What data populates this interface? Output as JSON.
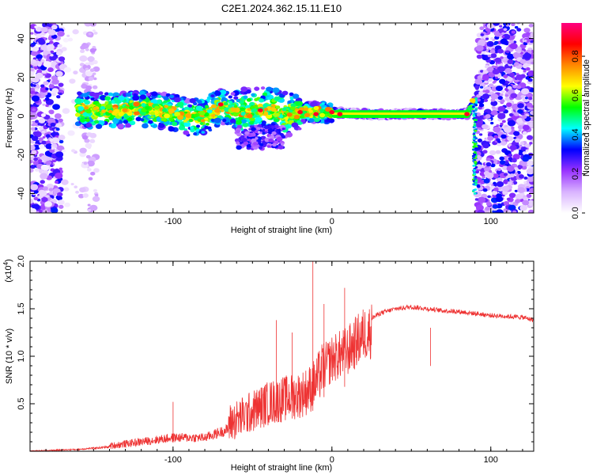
{
  "title": "C2E1.2024.362.15.11.E10",
  "chart_data": [
    {
      "type": "heatmap",
      "xlabel": "Height of straight line (km)",
      "ylabel": "Frequency (Hz)",
      "xlim": [
        -190,
        127
      ],
      "ylim": [
        -50,
        48
      ],
      "x_ticks": [
        -100,
        0,
        100
      ],
      "y_ticks": [
        -40,
        -20,
        0,
        20,
        40
      ],
      "x_tick_labels": [
        "-100",
        "0",
        "100"
      ],
      "y_tick_labels": [
        "-40",
        "-20",
        "0",
        "20",
        "40"
      ],
      "colorbar": {
        "label": "Normalized spectral amplitude",
        "range": [
          0,
          0.97
        ],
        "ticks": [
          "0.0",
          "0.2",
          "0.4",
          "0.6",
          "0.8"
        ],
        "tick_values": [
          0,
          0.2,
          0.4,
          0.6,
          0.8
        ],
        "colors": [
          "#ffffff",
          "#d9b3ff",
          "#9933ff",
          "#0000ff",
          "#00ffff",
          "#00ff00",
          "#ffff00",
          "#ff8800",
          "#ff0000",
          "#ff0080"
        ]
      },
      "ridge": {
        "x": [
          -160,
          -140,
          -120,
          -100,
          -90,
          -80,
          -70,
          -60,
          -50,
          -40,
          -30,
          -20,
          -10,
          0,
          20,
          40,
          60,
          80,
          85,
          88,
          90
        ],
        "y": [
          3,
          3,
          4,
          2,
          -1,
          0,
          5,
          3,
          2,
          4,
          1,
          2,
          2,
          2,
          1,
          1,
          1,
          1,
          1,
          5,
          8
        ]
      }
    },
    {
      "type": "line",
      "xlabel": "Height of straight line (km)",
      "ylabel": "SNR (10 * v/v)",
      "y_multiplier": "(x10",
      "y_multiplier_exp": "4",
      "xlim": [
        -190,
        127
      ],
      "ylim": [
        0,
        2.0
      ],
      "x_ticks": [
        -100,
        0,
        100
      ],
      "y_ticks": [
        0.5,
        1.0,
        1.5,
        2.0
      ],
      "x_tick_labels": [
        "-100",
        "0",
        "100"
      ],
      "y_tick_labels": [
        "0.5",
        "1.0",
        "1.5",
        "2.0"
      ],
      "series_color": "#ee3333",
      "envelope": {
        "x": [
          -190,
          -160,
          -140,
          -120,
          -100,
          -80,
          -65,
          -50,
          -40,
          -30,
          -20,
          -15,
          -10,
          -5,
          0,
          5,
          10,
          15,
          20,
          30,
          40,
          50,
          60,
          70,
          80,
          90,
          100,
          110,
          120,
          127
        ],
        "y": [
          0.0,
          0.02,
          0.05,
          0.1,
          0.15,
          0.15,
          0.25,
          0.4,
          0.5,
          0.55,
          0.6,
          0.65,
          0.75,
          0.95,
          1.05,
          1.1,
          1.15,
          1.25,
          1.35,
          1.45,
          1.5,
          1.52,
          1.5,
          1.48,
          1.47,
          1.45,
          1.43,
          1.42,
          1.41,
          1.38
        ]
      },
      "spikes": [
        {
          "x": -100,
          "y": 0.52
        },
        {
          "x": -35,
          "y": 1.38
        },
        {
          "x": -25,
          "y": 1.25
        },
        {
          "x": -12,
          "y": 2.0
        },
        {
          "x": 8,
          "y": 1.72
        },
        {
          "x": -5,
          "y": 1.55
        },
        {
          "x": 62,
          "y": 1.3
        }
      ]
    }
  ]
}
